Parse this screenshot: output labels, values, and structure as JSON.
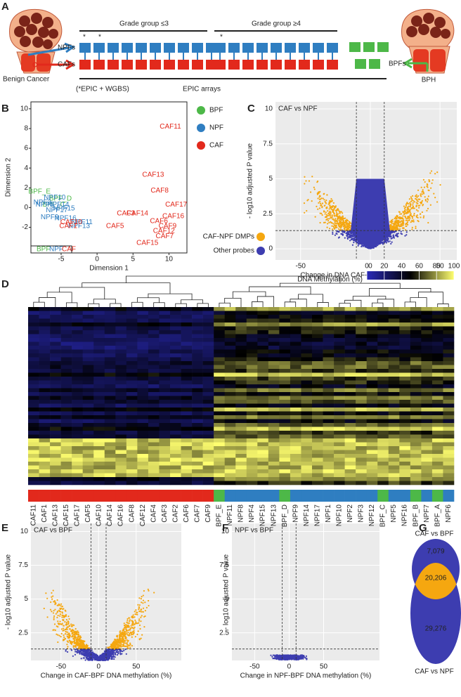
{
  "panel_labels": [
    "A",
    "B",
    "C",
    "D",
    "E",
    "F",
    "G"
  ],
  "schematic": {
    "grade_group_low": "Grade group ≤3",
    "grade_group_high": "Grade group ≥4",
    "asterisks": [
      "*",
      "*",
      "*"
    ],
    "npfs": "NPFs",
    "cafs": "CAFs",
    "bpfs": "BPFs",
    "benign_cancer": "Benign Cancer",
    "bph": "BPH",
    "c_arrow": "C",
    "epic_wgbs": "(*EPIC + WGBS)",
    "epic_arrays": "EPIC arrays"
  },
  "heatmap": {
    "samples": [
      "CAF11",
      "CAF1",
      "CAF13",
      "CAF15",
      "CAF17",
      "CAF5",
      "CAF10",
      "CAF14",
      "CAF16",
      "CAF8",
      "CAF12",
      "CAF4",
      "CAF3",
      "CAF2",
      "CAF6",
      "CAF7",
      "CAF9",
      "BPF_E",
      "NPF11",
      "NPF8",
      "NPF4",
      "NPF15",
      "NPF13",
      "BPF_D",
      "NPF9",
      "NPF14",
      "NPF17",
      "NPF1",
      "NPF10",
      "NPF2",
      "NPF3",
      "NPF12",
      "BPF_C",
      "NPF5",
      "NPF16",
      "BPF_B",
      "NPF7",
      "BPF_A",
      "NPF6"
    ],
    "colorbar": {
      "title": "DNA Methylation (%)",
      "lim": [
        0,
        100
      ],
      "ticks": [
        0,
        20,
        40,
        60,
        80,
        100
      ],
      "colors": [
        "#2a2ab8",
        "#000000",
        "#ffff70"
      ]
    }
  },
  "chart_data": [
    {
      "type": "scatter",
      "xlabel": "Dimension 1",
      "ylabel": "Dimension 2",
      "xlim": [
        -9.2,
        12.5
      ],
      "ylim": [
        -4.6,
        10.7
      ],
      "xticks": [
        -5,
        0,
        5,
        10
      ],
      "yticks": [
        -2,
        0,
        2,
        4,
        6,
        8,
        10
      ],
      "legend": "right",
      "grid": false,
      "series": [
        {
          "name": "BPF",
          "color": "#4db848",
          "labels": [
            "BPF_E",
            "BPF_D",
            "BPF_C"
          ],
          "x": [
            -8.0,
            -5.1,
            -6.0
          ],
          "values": [
            1.6,
            0.9,
            0.3
          ]
        },
        {
          "name": "NPF",
          "color": "#2f7ec1",
          "labels": [
            "NPF10",
            "NPF3",
            "NPF5",
            "NPF14",
            "NPF15",
            "NPF17",
            "NPF9",
            "NPF16",
            "NPF11",
            "NPF13"
          ],
          "x": [
            -5.9,
            -7.6,
            -7.3,
            -5.4,
            -4.6,
            -5.6,
            -6.6,
            -4.4,
            -2.1,
            -2.5
          ],
          "values": [
            1.0,
            0.5,
            0.3,
            0.3,
            -0.1,
            -0.3,
            -1.0,
            -1.1,
            -1.5,
            -1.9
          ]
        },
        {
          "name": "CAF",
          "color": "#e2291c",
          "labels": [
            "CAF11",
            "CAF13",
            "CAF8",
            "CAF17",
            "CAF16",
            "CAF6",
            "CAF9",
            "CAF12",
            "CAF7",
            "CAF15",
            "CAF3",
            "CAF14",
            "CAF5",
            "CAF1",
            "CAF10"
          ],
          "x": [
            10.2,
            7.8,
            8.7,
            11.0,
            10.6,
            8.6,
            9.8,
            9.3,
            9.4,
            7.0,
            4.0,
            5.6,
            2.5,
            -4.0,
            -3.6
          ],
          "values": [
            8.2,
            3.3,
            1.7,
            0.3,
            -0.9,
            -1.4,
            -1.9,
            -2.4,
            -2.9,
            -3.6,
            -0.6,
            -0.6,
            -1.9,
            -1.9,
            -1.5
          ]
        }
      ]
    },
    {
      "type": "volcano",
      "title": "CAF vs NPF",
      "xlabel": "Change in DNA CAF-NPF methylation (%)",
      "ylabel": "- log10 adjusted P value",
      "xlim": [
        -68,
        62
      ],
      "ylim": [
        -0.8,
        10.5
      ],
      "xticks": [
        -50,
        0,
        50
      ],
      "yticks": [
        0,
        2.5,
        5,
        7.5,
        10
      ],
      "vlines": [
        -10,
        10
      ],
      "hline": 1.3,
      "grid": true,
      "legend_entries": [
        {
          "name": "CAF-NPF DMPs",
          "color": "#f5a710"
        },
        {
          "name": "Other probes",
          "color": "#3d3db0"
        }
      ]
    },
    {
      "type": "volcano",
      "title": "CAF vs BPF",
      "xlabel": "Change in CAF-BPF DNA methylation (%)",
      "ylabel": "- log10 adjusted P value",
      "xlim": [
        -90,
        110
      ],
      "ylim": [
        0.45,
        10.6
      ],
      "xticks": [
        -50,
        0,
        50
      ],
      "yticks": [
        2.5,
        5,
        7.5,
        10
      ],
      "vlines": [
        -10,
        10
      ],
      "hline": 1.3,
      "grid": true,
      "point_colors": [
        "#f5a710",
        "#3d3db0"
      ]
    },
    {
      "type": "volcano",
      "title": "NPF vs BPF",
      "xlabel": "Change in NPF-BPF DNA methylation (%)",
      "ylabel": "- log10 adjusted P value",
      "xlim": [
        -83,
        131
      ],
      "ylim": [
        0.45,
        10.6
      ],
      "xticks": [
        -50,
        0,
        50
      ],
      "yticks": [
        2.5,
        5,
        7.5,
        10
      ],
      "vlines": [
        -10,
        10
      ],
      "hline": 1.3,
      "grid": true,
      "point_colors": [
        "#f5a710",
        "#3d3db0"
      ]
    },
    {
      "type": "venn",
      "sets": [
        "CAF vs BPF",
        "CAF vs NPF"
      ],
      "values": [
        7079,
        20206,
        29276
      ],
      "value_labels": [
        "7,079",
        "20,206",
        "29,276"
      ],
      "colors": [
        "#3d3db0",
        "#f5a710"
      ]
    }
  ]
}
